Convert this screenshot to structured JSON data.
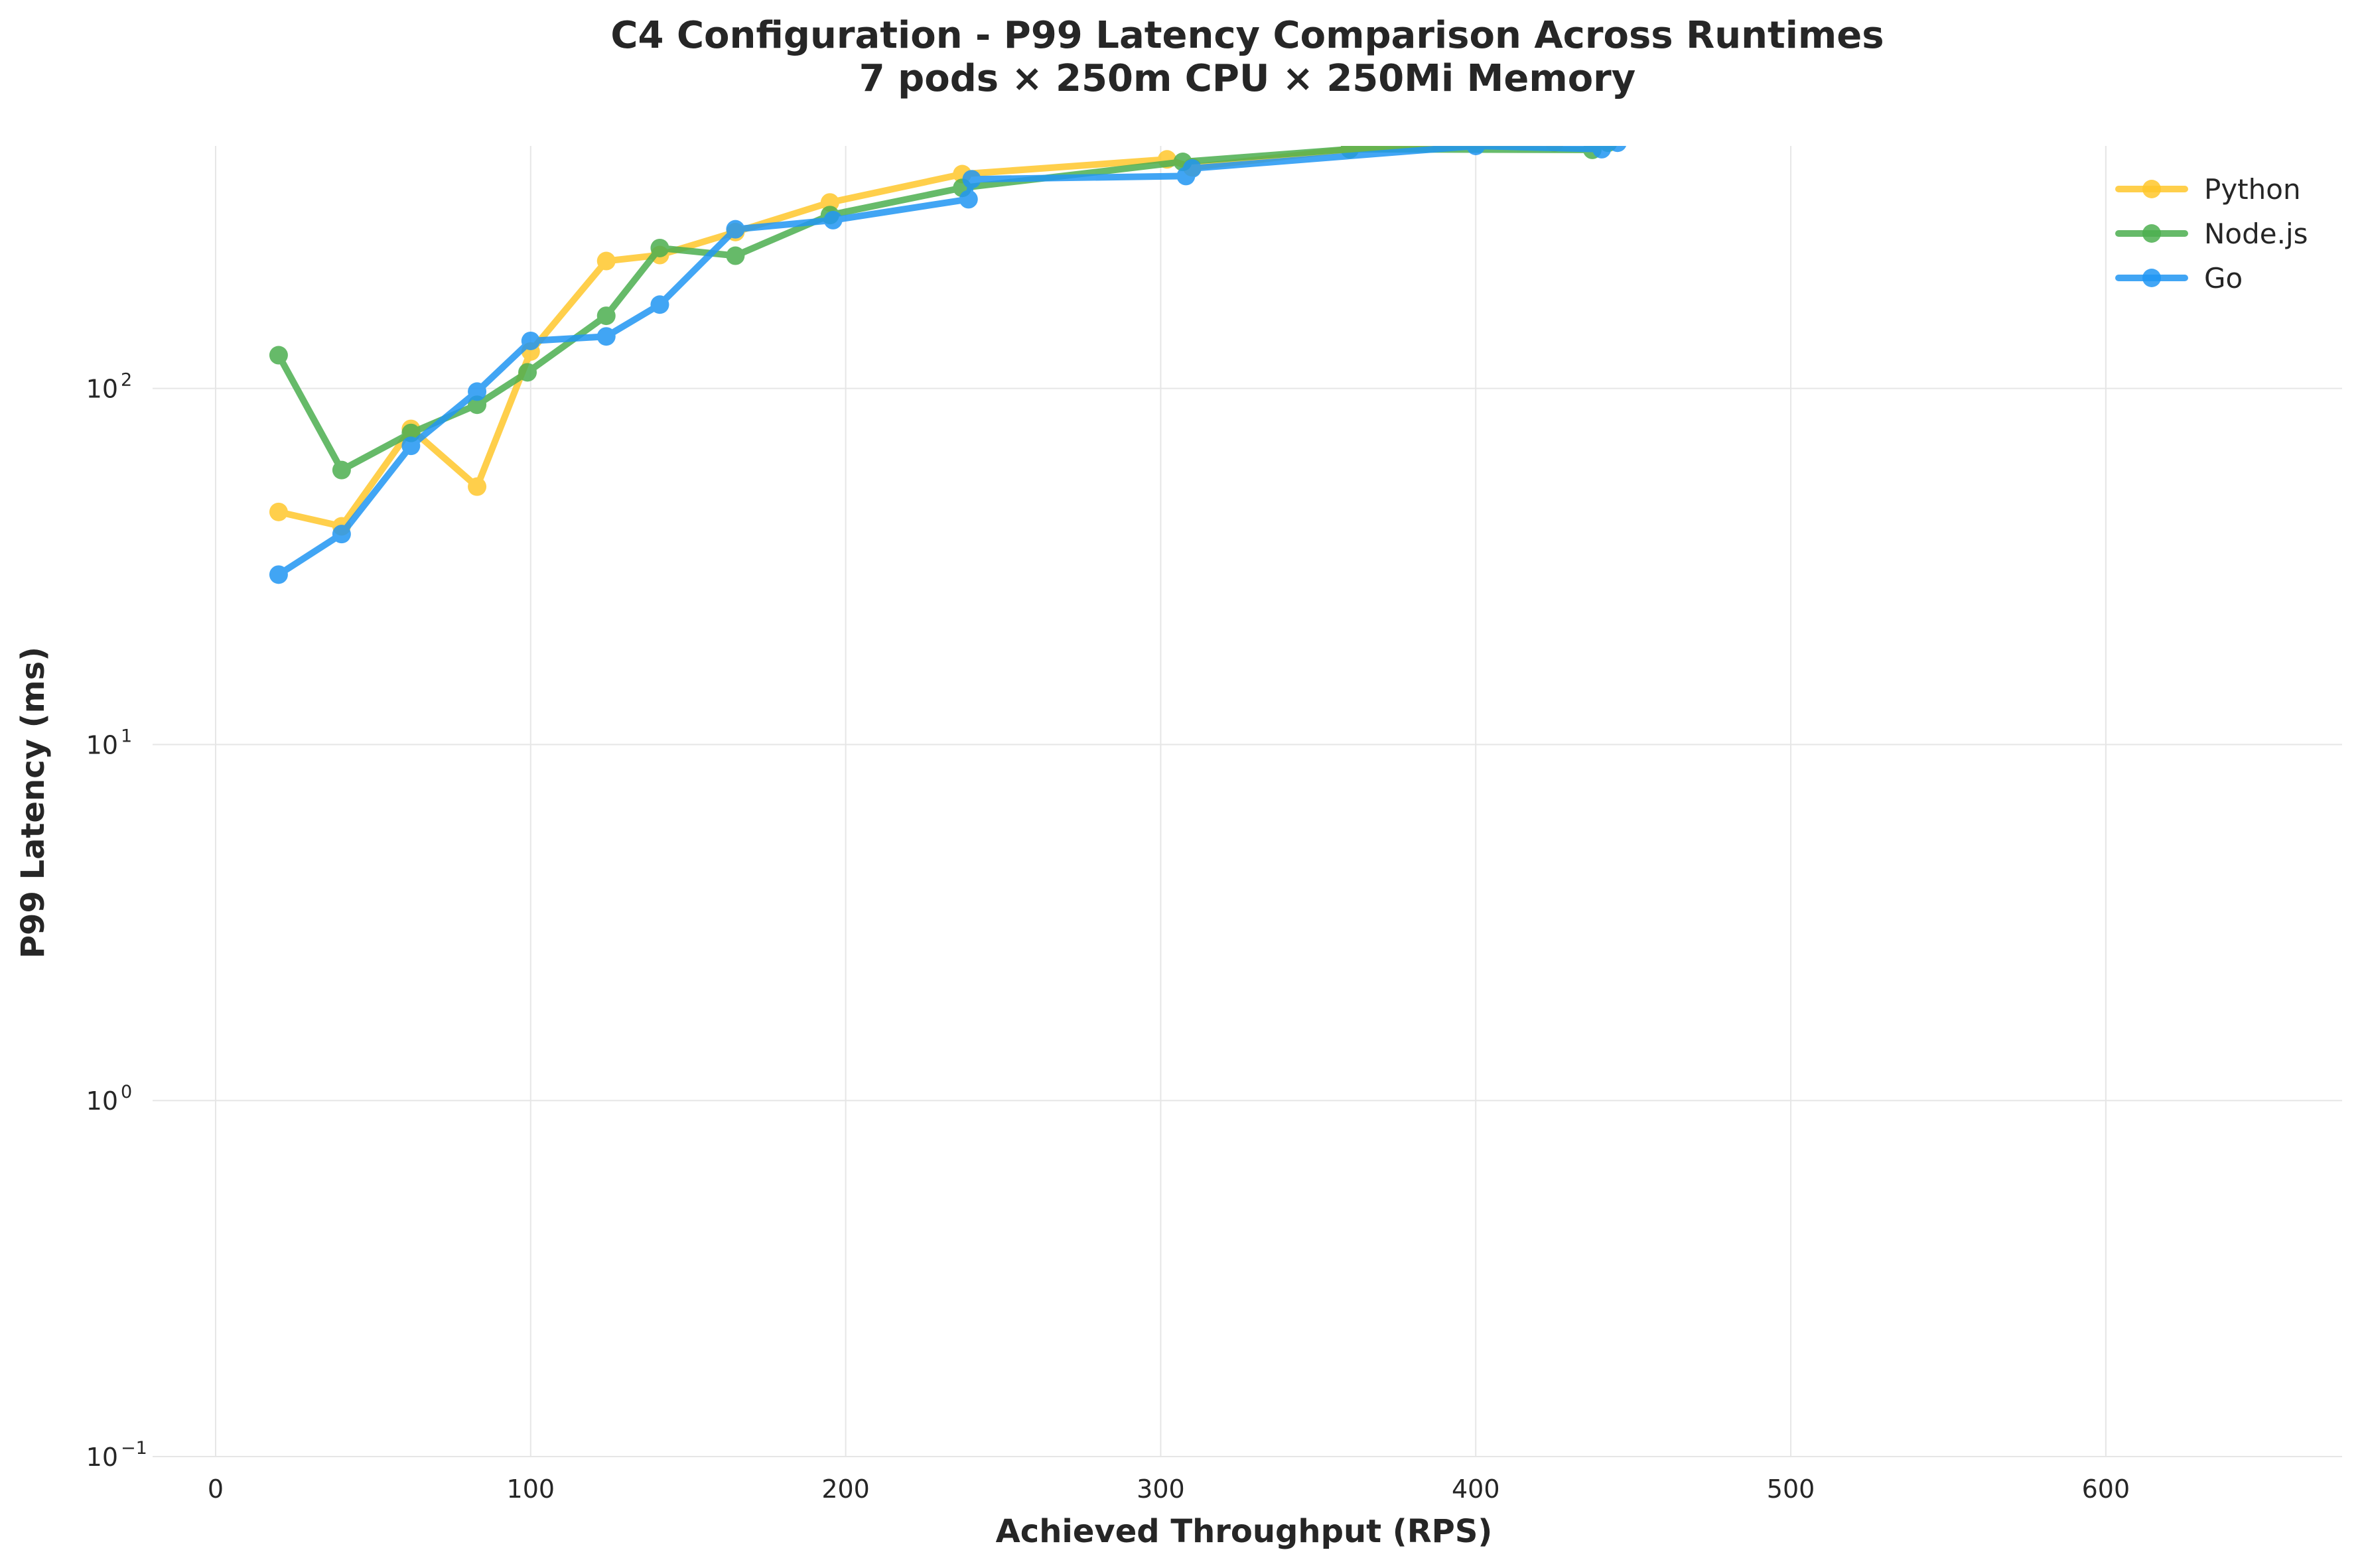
{
  "chart_data": {
    "type": "line",
    "title": "C4 Configuration - P99 Latency Comparison Across Runtimes",
    "subtitle": "7 pods × 250m CPU × 250Mi Memory",
    "xlabel": "Achieved Throughput (RPS)",
    "ylabel": "P99 Latency (ms)",
    "xlim": [
      -20,
      675
    ],
    "ylim": [
      0.1,
      480
    ],
    "yscale": "log",
    "xticks": [
      0,
      100,
      200,
      300,
      400,
      500,
      600
    ],
    "xtick_labels": [
      "0",
      "100",
      "200",
      "300",
      "400",
      "500",
      "600"
    ],
    "yticks": [
      {
        "value": 0.1,
        "base": "10",
        "exp": "−1"
      },
      {
        "value": 1,
        "base": "10",
        "exp": "0"
      },
      {
        "value": 10,
        "base": "10",
        "exp": "1"
      },
      {
        "value": 100,
        "base": "10",
        "exp": "2"
      }
    ],
    "grid": true,
    "legend_position": "top-right",
    "series": [
      {
        "name": "Python",
        "color": "#FFC72C",
        "x": [
          20,
          40,
          62,
          83,
          100,
          124,
          141,
          165,
          195,
          237,
          302,
          310,
          360,
          425
        ],
        "y": [
          45,
          41,
          77,
          53,
          127,
          228,
          237,
          275,
          333,
          400,
          440,
          418,
          470,
          490
        ]
      },
      {
        "name": "Node.js",
        "color": "#4CAF50",
        "x": [
          20,
          40,
          62,
          83,
          99,
          124,
          141,
          165,
          195,
          237,
          307,
          360,
          437,
          442
        ],
        "y": [
          124,
          59,
          75,
          90,
          111,
          160,
          248,
          236,
          307,
          366,
          433,
          470,
          468,
          490
        ]
      },
      {
        "name": "Go",
        "color": "#2196F3",
        "x": [
          20,
          40,
          62,
          83,
          100,
          124,
          141,
          165,
          196,
          239,
          240,
          308,
          310,
          400,
          440,
          445
        ],
        "y": [
          30,
          39,
          69,
          98,
          136,
          140,
          172,
          280,
          297,
          340,
          387,
          395,
          415,
          480,
          470,
          490
        ]
      }
    ]
  }
}
